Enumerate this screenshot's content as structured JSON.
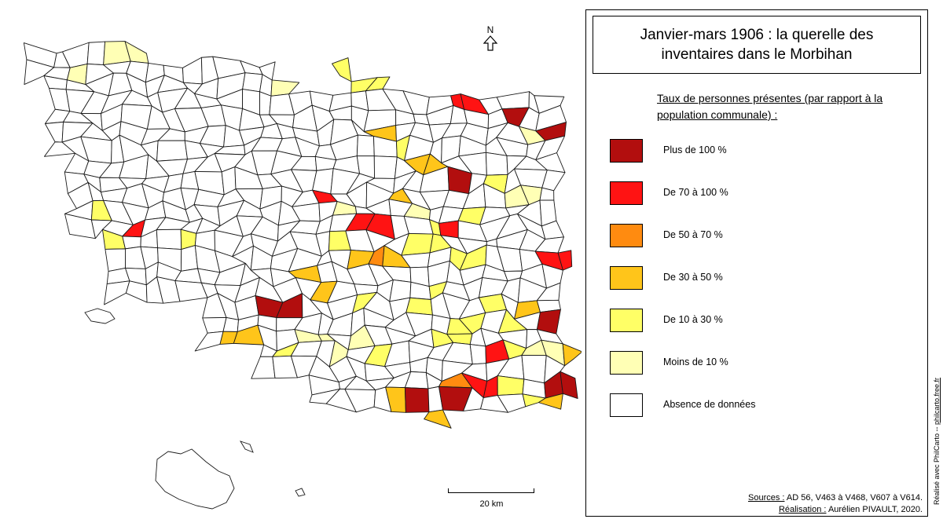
{
  "map": {
    "north_label": "N",
    "scale_label": "20 km",
    "colors": {
      "outline": "#1a1a1a",
      "absence": "#ffffff"
    }
  },
  "legend": {
    "title": "Janvier-mars 1906 : la querelle des inventaires dans le Morbihan",
    "heading": "Taux de personnes présentes (par rapport à la population communale) :",
    "items": [
      {
        "label": "Plus de 100 %",
        "color": "#b20e0e"
      },
      {
        "label": "De 70 à 100 %",
        "color": "#ff1313"
      },
      {
        "label": "De 50 à 70 %",
        "color": "#ff8b10"
      },
      {
        "label": "De 30 à 50 %",
        "color": "#ffc51a"
      },
      {
        "label": "De 10 à 30 %",
        "color": "#ffff66"
      },
      {
        "label": "Moins de 10 %",
        "color": "#ffffb5"
      },
      {
        "label": "Absence de données",
        "color": "#ffffff"
      }
    ]
  },
  "credits": {
    "sources_key": "Sources :",
    "sources_value": "AD 56, V463 à V468, V607 à V614.",
    "realisation_key": "Réalisation :",
    "realisation_value": "Aurélien PIVAULT, 2020."
  },
  "vertical_credit": {
    "prefix": "Réalisé avec PhilCarto -- ",
    "link": "philcarto.free.fr"
  }
}
